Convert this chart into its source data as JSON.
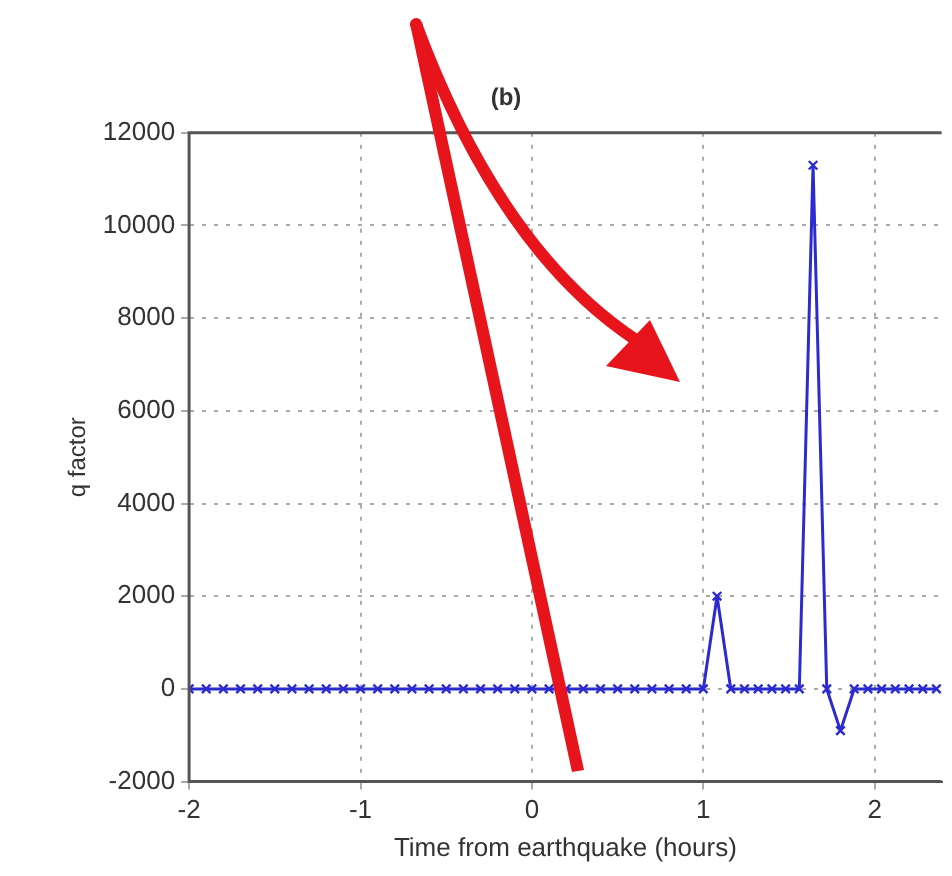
{
  "chart_data": {
    "type": "line",
    "title": "(b)",
    "xlabel": "Time from earthquake (hours)",
    "ylabel": "q factor",
    "xlim": [
      -2,
      2.39
    ],
    "xticks": [
      -2,
      -1,
      0,
      1,
      2
    ],
    "ylim": [
      -2000,
      12000
    ],
    "yticks": [
      -2000,
      0,
      2000,
      4000,
      6000,
      8000,
      10000,
      12000
    ],
    "grid": true,
    "legend": false,
    "marker": "cross",
    "line_style": "solid",
    "x": [
      -2,
      -1.9,
      -1.8,
      -1.7,
      -1.6,
      -1.5,
      -1.4,
      -1.3,
      -1.2,
      -1.1,
      -1,
      -0.9,
      -0.8,
      -0.7,
      -0.6,
      -0.5,
      -0.4,
      -0.3,
      -0.2,
      -0.1,
      0,
      0.1,
      0.2,
      0.3,
      0.4,
      0.5,
      0.6,
      0.7,
      0.8,
      0.9,
      1,
      1.08,
      1.16,
      1.24,
      1.32,
      1.4,
      1.48,
      1.56,
      1.64,
      1.72,
      1.8,
      1.88,
      1.96,
      2.04,
      2.12,
      2.2,
      2.28,
      2.36
    ],
    "series": [
      {
        "color": "#2b2bd0",
        "values": [
          0,
          0,
          0,
          0,
          0,
          0,
          0,
          0,
          0,
          0,
          0,
          0,
          0,
          0,
          0,
          0,
          0,
          0,
          0,
          0,
          0,
          0,
          0,
          0,
          0,
          0,
          0,
          0,
          0,
          0,
          0,
          2000,
          0,
          0,
          0,
          0,
          0,
          0,
          11300,
          0,
          -900,
          0,
          0,
          0,
          0,
          0,
          0,
          0
        ]
      }
    ]
  }
}
